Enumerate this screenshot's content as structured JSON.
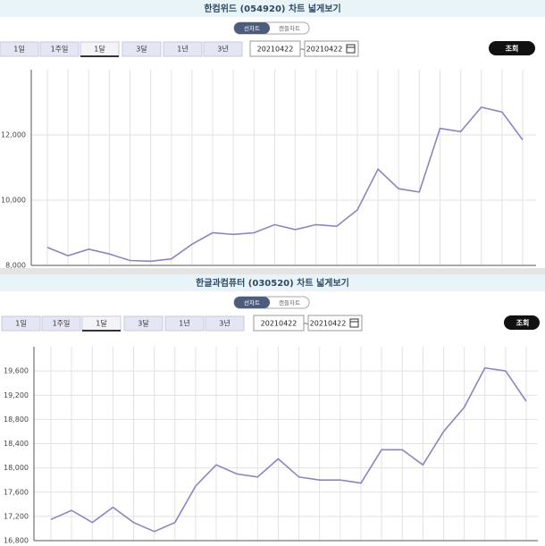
{
  "panels": [
    {
      "toggle": [
        "선차트",
        "캔들차트"
      ],
      "periods": [
        "1일",
        "1주일",
        "1달",
        "3달",
        "1년",
        "3년"
      ],
      "date_from": "20210422",
      "separator": "~",
      "date_to": "20210422",
      "button": "조회"
    },
    {
      "toggle": [
        "선차트",
        "캔들차트"
      ],
      "periods": [
        "1일",
        "1주일",
        "1달",
        "3달",
        "1년",
        "3년"
      ],
      "date_from": "20210422",
      "separator": "~",
      "date_to": "20210422",
      "button": "조회"
    }
  ],
  "chart_data": [
    {
      "type": "line",
      "title": "한컴위드 (054920) 차트 넓게보기",
      "color": "#8a86c2",
      "grid": true,
      "values": [
        8550,
        8300,
        8500,
        8350,
        8150,
        8130,
        8200,
        8650,
        9000,
        8950,
        9000,
        9250,
        9100,
        9250,
        9200,
        9700,
        10950,
        10350,
        10250,
        12200,
        12100,
        12850,
        12700,
        11850
      ],
      "ylim": [
        8000,
        14000
      ],
      "yticks": [
        {
          "value": 8000,
          "label": "8,000"
        },
        {
          "value": 10000,
          "label": "10,000"
        },
        {
          "value": 12000,
          "label": "12,000"
        }
      ]
    },
    {
      "type": "line",
      "title": "한글과컴퓨터 (030520) 차트 넓게보기",
      "color": "#8a86c2",
      "grid": true,
      "values": [
        17150,
        17300,
        17100,
        17350,
        17100,
        16950,
        17100,
        17700,
        18050,
        17900,
        17850,
        18150,
        17850,
        17800,
        17800,
        17750,
        18300,
        18300,
        18050,
        18600,
        19000,
        19650,
        19600,
        19100
      ],
      "ylim": [
        16800,
        20000
      ],
      "yticks": [
        {
          "value": 16800,
          "label": "16,800"
        },
        {
          "value": 17200,
          "label": "17,200"
        },
        {
          "value": 17600,
          "label": "17,600"
        },
        {
          "value": 18000,
          "label": "18,000"
        },
        {
          "value": 18400,
          "label": "18,400"
        },
        {
          "value": 18800,
          "label": "18,800"
        },
        {
          "value": 19200,
          "label": "19,200"
        },
        {
          "value": 19600,
          "label": "19,600"
        }
      ]
    }
  ]
}
